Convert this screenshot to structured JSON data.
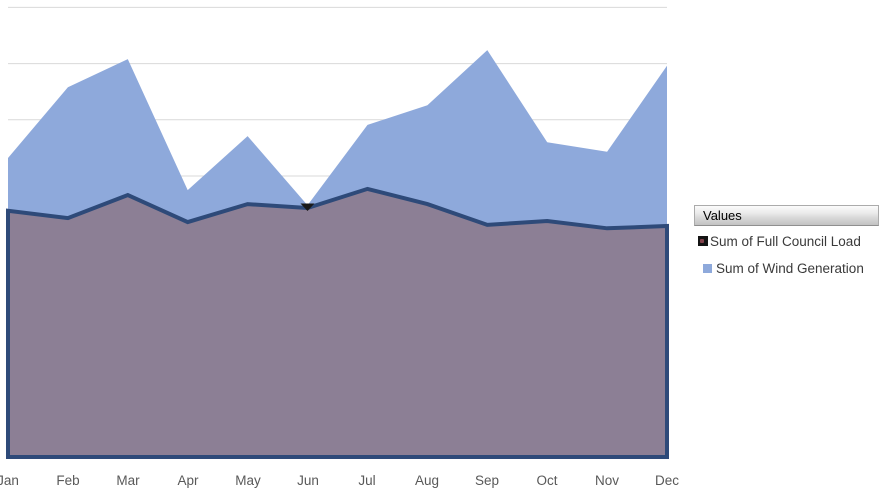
{
  "legend": {
    "header": "Values",
    "entries": [
      {
        "label": "Sum of Full Council Load"
      },
      {
        "label": "Sum of Wind Generation"
      }
    ]
  },
  "colors": {
    "background": "#FFFFFF",
    "wind_fill": "#8EA9DB",
    "load_fill_over_wind": "#8C7F95",
    "load_border": "#2E4A79",
    "gridline": "#D9D9D9",
    "axis_label_text": "#595959",
    "legend_text": "#3A3A3A",
    "jun_notch": "#1A1A1A",
    "legend_load_swatch_bg": "#141414",
    "legend_load_swatch_dot": "#83424C",
    "legend_wind_swatch": "#8EA9DB"
  },
  "chart_data": {
    "type": "area",
    "stacked": false,
    "title": "",
    "xlabel": "",
    "ylabel": "",
    "categories": [
      "Jan",
      "Feb",
      "Mar",
      "Apr",
      "May",
      "Jun",
      "Jul",
      "Aug",
      "Sep",
      "Oct",
      "Nov",
      "Dec"
    ],
    "series": [
      {
        "name": "Sum of Full Council Load",
        "values": [
          4.38,
          4.25,
          4.66,
          4.18,
          4.5,
          4.43,
          4.77,
          4.5,
          4.13,
          4.2,
          4.07,
          4.11
        ]
      },
      {
        "name": "Sum of Wind Generation",
        "values": [
          5.32,
          6.58,
          7.08,
          4.75,
          5.71,
          4.48,
          5.91,
          6.26,
          7.24,
          5.6,
          5.43,
          6.96
        ]
      }
    ],
    "ylim": [
      0,
      8
    ],
    "y_gridline_step": 1,
    "y_axis_labels_visible": false,
    "grid": true,
    "legend_position": "right",
    "note": "Y-axis tick labels are cropped out of the screenshot; values are expressed in gridline units (1 unit = one horizontal gridline interval)."
  }
}
